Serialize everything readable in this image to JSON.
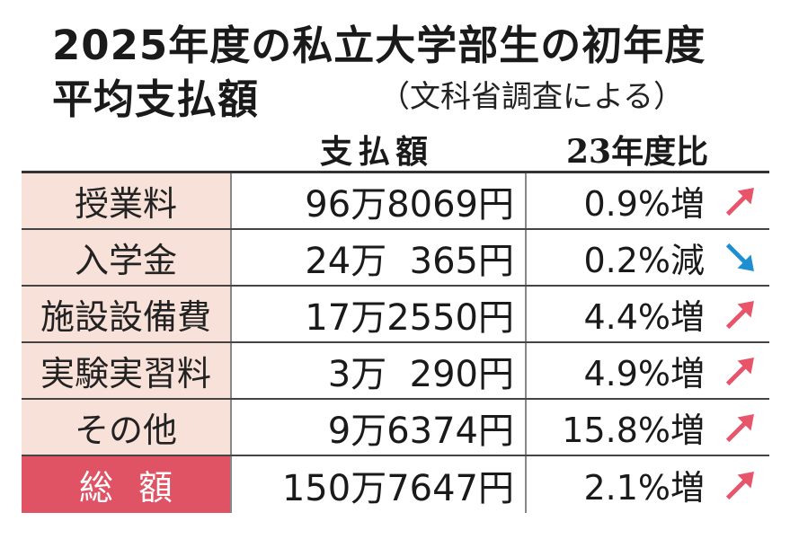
{
  "title": {
    "line1": "2025年度の私立大学部生の初年度",
    "line2": "平均支払額",
    "source": "（文科省調査による）"
  },
  "columns": {
    "amount": "支払額",
    "ratio": "23年度比"
  },
  "rows": [
    {
      "label": "授業料",
      "amount": "96万8069円",
      "ratio": "0.9%増",
      "trend": "up"
    },
    {
      "label": "入学金",
      "amount": "24万  365円",
      "ratio": "0.2%減",
      "trend": "down"
    },
    {
      "label": "施設設備費",
      "amount": "17万2550円",
      "ratio": "4.4%増",
      "trend": "up"
    },
    {
      "label": "実験実習料",
      "amount": "3万  290円",
      "ratio": "4.9%増",
      "trend": "up"
    },
    {
      "label": "その他",
      "amount": "9万6374円",
      "ratio": "15.8%増",
      "trend": "up"
    },
    {
      "label": "総額",
      "amount": "150万7647円",
      "ratio": "2.1%増",
      "trend": "up"
    }
  ],
  "colors": {
    "label_bg": "#f7e1d8",
    "total_bg": "#e05364",
    "up_arrow": "#e8546a",
    "down_arrow": "#1e8fd0"
  }
}
